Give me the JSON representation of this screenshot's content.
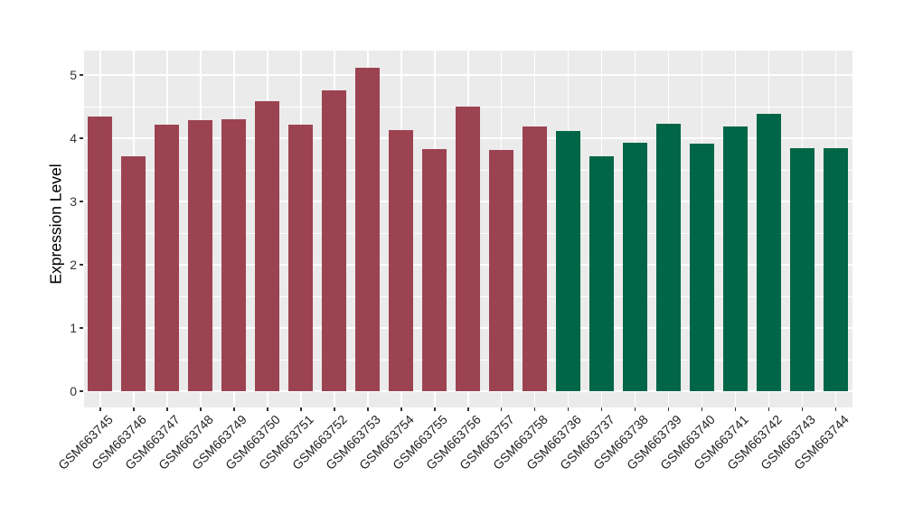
{
  "chart_data": {
    "type": "bar",
    "title": "",
    "xlabel": "",
    "ylabel": "Expression Level",
    "ylim": [
      -0.26,
      5.38
    ],
    "yticks": [
      0,
      1,
      2,
      3,
      4,
      5
    ],
    "minor_yticks": [
      0.5,
      1.5,
      2.5,
      3.5,
      4.5
    ],
    "grid": true,
    "legend_position": "none",
    "panel_background": "#EBEBEB",
    "gridline_color": "#FFFFFF",
    "axis_text_color": "#222222",
    "categories": [
      "GSM663745",
      "GSM663746",
      "GSM663747",
      "GSM663748",
      "GSM663749",
      "GSM663750",
      "GSM663751",
      "GSM663752",
      "GSM663753",
      "GSM663754",
      "GSM663755",
      "GSM663756",
      "GSM663757",
      "GSM663758",
      "GSM663736",
      "GSM663737",
      "GSM663738",
      "GSM663739",
      "GSM663740",
      "GSM663741",
      "GSM663742",
      "GSM663743",
      "GSM663744"
    ],
    "values": [
      4.35,
      3.72,
      4.22,
      4.29,
      4.3,
      4.59,
      4.22,
      4.76,
      5.12,
      4.13,
      3.83,
      4.5,
      3.82,
      4.19,
      4.12,
      3.71,
      3.93,
      4.23,
      3.91,
      4.19,
      4.39,
      3.85,
      3.85
    ],
    "bar_groups": [
      0,
      0,
      0,
      0,
      0,
      0,
      0,
      0,
      0,
      0,
      0,
      0,
      0,
      0,
      1,
      1,
      1,
      1,
      1,
      1,
      1,
      1,
      1
    ],
    "group_colors": [
      "#9C4352",
      "#006647"
    ]
  }
}
